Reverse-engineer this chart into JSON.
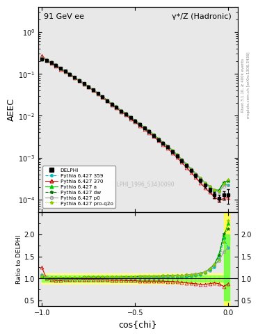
{
  "title_left": "91 GeV ee",
  "title_right": "γ*/Z (Hadronic)",
  "ylabel_main": "AEEC",
  "ylabel_ratio": "Ratio to DELPHI",
  "xlabel": "cos{chi}",
  "watermark": "DELPHI_1996_S3430090",
  "right_label": "Rivet 3.1.10, ≥ 400k events",
  "right_label2": "mcplots.cern.ch [arXiv:1306.3436]",
  "ylim_main": [
    5e-05,
    4.0
  ],
  "ylim_ratio": [
    0.38,
    2.5
  ],
  "xlim": [
    -1.02,
    0.05
  ],
  "cos_chi": [
    -1.0,
    -0.975,
    -0.95,
    -0.925,
    -0.9,
    -0.875,
    -0.85,
    -0.825,
    -0.8,
    -0.775,
    -0.75,
    -0.725,
    -0.7,
    -0.675,
    -0.65,
    -0.625,
    -0.6,
    -0.575,
    -0.55,
    -0.525,
    -0.5,
    -0.475,
    -0.45,
    -0.425,
    -0.4,
    -0.375,
    -0.35,
    -0.325,
    -0.3,
    -0.275,
    -0.25,
    -0.225,
    -0.2,
    -0.175,
    -0.15,
    -0.125,
    -0.1,
    -0.075,
    -0.05,
    -0.025,
    0.0
  ],
  "delphi_y": [
    0.22,
    0.21,
    0.185,
    0.16,
    0.135,
    0.115,
    0.098,
    0.082,
    0.069,
    0.058,
    0.049,
    0.041,
    0.034,
    0.028,
    0.023,
    0.019,
    0.016,
    0.013,
    0.011,
    0.009,
    0.0075,
    0.0062,
    0.0051,
    0.0042,
    0.0034,
    0.0027,
    0.0022,
    0.0018,
    0.0014,
    0.0011,
    0.00085,
    0.00065,
    0.0005,
    0.00038,
    0.00029,
    0.00022,
    0.00017,
    0.00013,
    0.00011,
    0.00013,
    0.00013
  ],
  "delphi_yerr": [
    0.015,
    0.012,
    0.01,
    0.009,
    0.008,
    0.007,
    0.006,
    0.005,
    0.004,
    0.003,
    0.003,
    0.002,
    0.002,
    0.002,
    0.001,
    0.001,
    0.001,
    0.0008,
    0.0007,
    0.0006,
    0.0005,
    0.0004,
    0.00035,
    0.0003,
    0.00025,
    0.0002,
    0.00015,
    0.00013,
    0.0001,
    8e-05,
    6e-05,
    5e-05,
    4e-05,
    3.5e-05,
    3e-05,
    2.5e-05,
    2e-05,
    2e-05,
    2e-05,
    3e-05,
    5e-05
  ],
  "series": [
    {
      "label": "Pythia 6.427 359",
      "color": "#00BBBB",
      "linestyle": "--",
      "marker": "o",
      "markersize": 2.5,
      "markerfilled": true,
      "ratio_scale": [
        1.08,
        1.01,
        1.0,
        1.0,
        0.99,
        0.99,
        1.0,
        1.0,
        1.01,
        1.01,
        1.01,
        1.01,
        1.01,
        1.01,
        1.01,
        1.01,
        1.01,
        1.01,
        1.01,
        1.01,
        1.01,
        1.01,
        1.01,
        1.01,
        1.01,
        1.01,
        1.02,
        1.02,
        1.02,
        1.02,
        1.03,
        1.03,
        1.05,
        1.07,
        1.09,
        1.13,
        1.18,
        1.25,
        1.45,
        1.9,
        1.7
      ]
    },
    {
      "label": "Pythia 6.427 370",
      "color": "#CC0000",
      "linestyle": "-",
      "marker": "^",
      "markersize": 3.5,
      "markerfilled": false,
      "ratio_scale": [
        1.25,
        1.0,
        0.97,
        0.96,
        0.95,
        0.97,
        0.97,
        0.98,
        0.98,
        0.98,
        0.98,
        0.98,
        0.97,
        0.97,
        0.97,
        0.96,
        0.96,
        0.96,
        0.95,
        0.95,
        0.95,
        0.94,
        0.94,
        0.94,
        0.94,
        0.94,
        0.94,
        0.93,
        0.93,
        0.92,
        0.91,
        0.9,
        0.89,
        0.88,
        0.87,
        0.87,
        0.88,
        0.9,
        0.88,
        0.82,
        0.88
      ]
    },
    {
      "label": "Pythia 6.427 a",
      "color": "#00CC00",
      "linestyle": "-",
      "marker": "^",
      "markersize": 3.5,
      "markerfilled": true,
      "ratio_scale": [
        1.05,
        1.02,
        1.02,
        1.02,
        1.02,
        1.02,
        1.02,
        1.02,
        1.02,
        1.03,
        1.03,
        1.03,
        1.03,
        1.03,
        1.03,
        1.03,
        1.03,
        1.04,
        1.04,
        1.04,
        1.04,
        1.05,
        1.05,
        1.05,
        1.05,
        1.05,
        1.06,
        1.06,
        1.07,
        1.07,
        1.07,
        1.08,
        1.09,
        1.1,
        1.12,
        1.15,
        1.22,
        1.32,
        1.55,
        1.95,
        2.25
      ]
    },
    {
      "label": "Pythia 6.427 dw",
      "color": "#007700",
      "linestyle": "--",
      "marker": "*",
      "markersize": 3.5,
      "markerfilled": true,
      "ratio_scale": [
        1.05,
        1.02,
        1.02,
        1.02,
        1.02,
        1.02,
        1.02,
        1.02,
        1.02,
        1.03,
        1.03,
        1.03,
        1.03,
        1.03,
        1.03,
        1.03,
        1.03,
        1.04,
        1.04,
        1.04,
        1.04,
        1.05,
        1.05,
        1.05,
        1.05,
        1.05,
        1.06,
        1.06,
        1.07,
        1.07,
        1.07,
        1.08,
        1.09,
        1.1,
        1.12,
        1.15,
        1.22,
        1.32,
        1.52,
        2.02,
        2.12
      ]
    },
    {
      "label": "Pythia 6.427 p0",
      "color": "#999999",
      "linestyle": "-",
      "marker": "o",
      "markersize": 3.0,
      "markerfilled": false,
      "ratio_scale": [
        1.08,
        1.03,
        1.02,
        1.02,
        1.01,
        1.01,
        1.01,
        1.01,
        1.01,
        1.01,
        1.01,
        1.01,
        1.01,
        1.01,
        1.02,
        1.02,
        1.02,
        1.02,
        1.02,
        1.02,
        1.02,
        1.03,
        1.03,
        1.03,
        1.03,
        1.03,
        1.04,
        1.04,
        1.05,
        1.06,
        1.07,
        1.08,
        1.09,
        1.1,
        1.12,
        1.15,
        1.2,
        1.3,
        1.4,
        1.6,
        1.7
      ]
    },
    {
      "label": "Pythia 6.427 pro-q2o",
      "color": "#88CC00",
      "linestyle": ":",
      "marker": "*",
      "markersize": 3.5,
      "markerfilled": true,
      "ratio_scale": [
        1.05,
        1.02,
        1.02,
        1.02,
        1.02,
        1.02,
        1.02,
        1.02,
        1.02,
        1.03,
        1.03,
        1.03,
        1.03,
        1.03,
        1.03,
        1.03,
        1.03,
        1.04,
        1.04,
        1.04,
        1.04,
        1.05,
        1.05,
        1.05,
        1.05,
        1.05,
        1.06,
        1.06,
        1.07,
        1.07,
        1.07,
        1.08,
        1.09,
        1.1,
        1.12,
        1.15,
        1.22,
        1.32,
        1.42,
        1.82,
        2.32
      ]
    }
  ],
  "band_yellow": {
    "lo": 0.88,
    "hi": 1.12
  },
  "band_green": {
    "lo": 0.93,
    "hi": 1.07
  },
  "bg_color": "#ffffff",
  "panel_bg": "#e8e8e8"
}
